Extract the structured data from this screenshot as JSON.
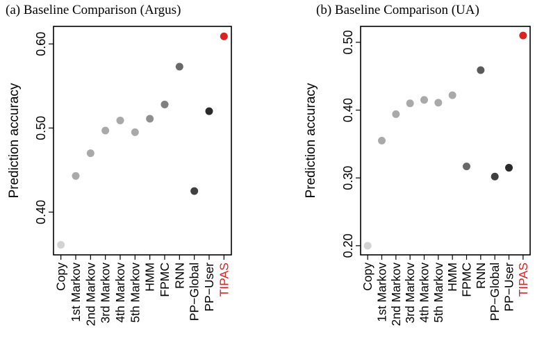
{
  "chart_data": [
    {
      "type": "scatter",
      "panel": "(a)",
      "title": "Baseline Comparison (Argus)",
      "xlabel": "",
      "ylabel": "Prediction accuracy",
      "ylim": [
        0.36,
        0.61
      ],
      "yticks": [
        0.4,
        0.5,
        0.6
      ],
      "ytick_labels": [
        "0.40",
        "0.50",
        "0.60"
      ],
      "categories": [
        "Copy",
        "1st Markov",
        "2nd Markov",
        "3rd Markov",
        "4th Markov",
        "5th Markov",
        "HMM",
        "FPMC",
        "RNN",
        "PP−Global",
        "PP−User",
        "TIPAS"
      ],
      "values": [
        0.361,
        0.443,
        0.47,
        0.497,
        0.509,
        0.495,
        0.511,
        0.528,
        0.573,
        0.425,
        0.52,
        0.609
      ],
      "point_colors": [
        "#d3d3d3",
        "#a9a9a9",
        "#a9a9a9",
        "#a9a9a9",
        "#a9a9a9",
        "#a9a9a9",
        "#8f8f8f",
        "#808080",
        "#696969",
        "#404040",
        "#2a2a2a",
        "#dd2222"
      ],
      "label_colors": [
        "#000000",
        "#000000",
        "#000000",
        "#000000",
        "#000000",
        "#000000",
        "#000000",
        "#000000",
        "#000000",
        "#000000",
        "#000000",
        "#dd2222"
      ]
    },
    {
      "type": "scatter",
      "panel": "(b)",
      "title": "Baseline Comparison (UA)",
      "xlabel": "",
      "ylabel": "Prediction accuracy",
      "ylim": [
        0.2,
        0.51
      ],
      "yticks": [
        0.2,
        0.3,
        0.4,
        0.5
      ],
      "ytick_labels": [
        "0.20",
        "0.30",
        "0.40",
        "0.50"
      ],
      "categories": [
        "Copy",
        "1st Markov",
        "2nd Markov",
        "3rd Markov",
        "4th Markov",
        "5th Markov",
        "HMM",
        "FPMC",
        "RNN",
        "PP−Global",
        "PP−User",
        "TIPAS"
      ],
      "values": [
        0.2,
        0.355,
        0.394,
        0.41,
        0.415,
        0.411,
        0.422,
        0.317,
        0.459,
        0.302,
        0.315,
        0.51
      ],
      "point_colors": [
        "#d3d3d3",
        "#a9a9a9",
        "#a9a9a9",
        "#a9a9a9",
        "#a9a9a9",
        "#a9a9a9",
        "#a9a9a9",
        "#696969",
        "#5a5a5a",
        "#404040",
        "#2a2a2a",
        "#dd2222"
      ],
      "label_colors": [
        "#000000",
        "#000000",
        "#000000",
        "#000000",
        "#000000",
        "#000000",
        "#000000",
        "#000000",
        "#000000",
        "#000000",
        "#000000",
        "#dd2222"
      ]
    }
  ]
}
